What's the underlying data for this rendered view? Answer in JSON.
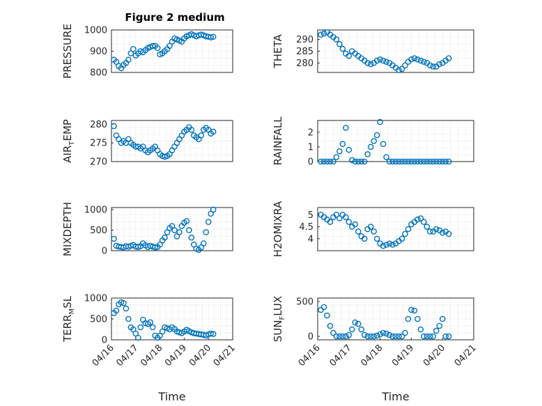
{
  "chart_data": {
    "type": "scatter",
    "title": "Figure 2 medium",
    "xlabel": "Time",
    "x_tick_labels": [
      "04/16",
      "04/17",
      "04/18",
      "04/19",
      "04/20",
      "04/21"
    ],
    "x_range_days": [
      0,
      5
    ],
    "grid": "minor-dotted",
    "marker": "open-circle",
    "colors": {
      "marker": "#0072bd",
      "axes": "#262626",
      "grid": "#d0d0d0"
    },
    "panels": [
      {
        "ylabel": "PRESSURE",
        "ylim": [
          800,
          1000
        ],
        "yticks": [
          "800",
          "900",
          "1000"
        ],
        "ytick_values": [
          800,
          900,
          1000
        ],
        "x_days": [
          0.1,
          0.2,
          0.3,
          0.4,
          0.5,
          0.6,
          0.7,
          0.8,
          0.9,
          1.0,
          1.1,
          1.2,
          1.3,
          1.4,
          1.5,
          1.6,
          1.7,
          1.8,
          1.9,
          2.0,
          2.1,
          2.2,
          2.3,
          2.4,
          2.5,
          2.6,
          2.7,
          2.8,
          2.9,
          3.0,
          3.1,
          3.2,
          3.3,
          3.4,
          3.5,
          3.6,
          3.7,
          3.8,
          3.9,
          4.0,
          4.1,
          4.2
        ],
        "values": [
          860,
          850,
          830,
          820,
          835,
          845,
          860,
          890,
          910,
          880,
          890,
          900,
          895,
          905,
          915,
          920,
          925,
          925,
          915,
          885,
          890,
          900,
          910,
          925,
          945,
          960,
          955,
          950,
          945,
          960,
          970,
          975,
          980,
          975,
          970,
          975,
          978,
          975,
          970,
          968,
          965,
          968
        ]
      },
      {
        "ylabel": "THETA",
        "ylim": [
          276,
          294
        ],
        "yticks": [
          "280",
          "285",
          "290"
        ],
        "ytick_values": [
          280,
          285,
          290
        ],
        "x_days": [
          0.1,
          0.2,
          0.3,
          0.4,
          0.5,
          0.6,
          0.7,
          0.8,
          0.9,
          1.0,
          1.1,
          1.2,
          1.3,
          1.4,
          1.5,
          1.6,
          1.7,
          1.8,
          1.9,
          2.0,
          2.1,
          2.2,
          2.3,
          2.4,
          2.5,
          2.6,
          2.7,
          2.8,
          2.9,
          3.0,
          3.1,
          3.2,
          3.3,
          3.4,
          3.5,
          3.6,
          3.7,
          3.8,
          3.9,
          4.0,
          4.1,
          4.2
        ],
        "values": [
          292,
          292.5,
          293,
          292,
          291,
          290,
          288,
          286,
          284,
          283,
          285,
          284,
          283,
          282,
          281,
          280,
          279.5,
          280,
          281,
          281.5,
          281,
          280.5,
          280,
          279,
          278,
          277,
          277.5,
          279,
          280.5,
          281.5,
          282,
          281.5,
          281,
          280.5,
          280,
          279,
          278.5,
          278.5,
          279.5,
          280,
          281,
          282
        ]
      },
      {
        "ylabel_parts": [
          "AIR",
          "T",
          "EMP"
        ],
        "ylim": [
          270,
          281
        ],
        "yticks": [
          "270",
          "275",
          "280"
        ],
        "ytick_values": [
          270,
          275,
          280
        ],
        "x_days": [
          0.1,
          0.2,
          0.3,
          0.4,
          0.5,
          0.6,
          0.7,
          0.8,
          0.9,
          1.0,
          1.1,
          1.2,
          1.3,
          1.4,
          1.5,
          1.6,
          1.7,
          1.8,
          1.9,
          2.0,
          2.1,
          2.2,
          2.3,
          2.4,
          2.5,
          2.6,
          2.7,
          2.8,
          2.9,
          3.0,
          3.1,
          3.2,
          3.3,
          3.4,
          3.5,
          3.6,
          3.7,
          3.8,
          3.9,
          4.0,
          4.1,
          4.2
        ],
        "values": [
          279.5,
          277,
          276,
          275,
          275.5,
          275,
          276,
          275,
          274.5,
          274,
          274,
          273.5,
          274,
          273,
          272.5,
          273,
          273.5,
          274,
          273,
          272,
          271.5,
          271.3,
          271.5,
          272,
          273,
          274,
          275,
          276,
          277,
          278,
          278.5,
          279.2,
          278.5,
          277,
          276.5,
          276,
          277,
          278.5,
          279,
          278.5,
          277.5,
          278
        ]
      },
      {
        "ylabel": "RAINFALL",
        "ylim": [
          0,
          2.8
        ],
        "yticks": [
          "0",
          "1",
          "2"
        ],
        "ytick_values": [
          0,
          1,
          2
        ],
        "x_days": [
          0.1,
          0.2,
          0.3,
          0.4,
          0.5,
          0.6,
          0.7,
          0.8,
          0.9,
          1.0,
          1.1,
          1.2,
          1.3,
          1.4,
          1.5,
          1.6,
          1.7,
          1.8,
          1.9,
          2.0,
          2.1,
          2.2,
          2.3,
          2.4,
          2.5,
          2.6,
          2.7,
          2.8,
          2.9,
          3.0,
          3.1,
          3.2,
          3.3,
          3.4,
          3.5,
          3.6,
          3.7,
          3.8,
          3.9,
          4.0,
          4.1,
          4.2
        ],
        "values": [
          0,
          0,
          0,
          0,
          0,
          0.3,
          0.7,
          1.2,
          2.3,
          0.8,
          0.1,
          0,
          0,
          0,
          0,
          0.5,
          1.0,
          1.4,
          1.8,
          2.7,
          1.2,
          0.3,
          0,
          0,
          0,
          0,
          0,
          0,
          0,
          0,
          0,
          0,
          0,
          0,
          0,
          0,
          0,
          0,
          0,
          0,
          0,
          0
        ]
      },
      {
        "ylabel": "MIXDEPTH",
        "ylim": [
          0,
          1050
        ],
        "yticks": [
          "0",
          "500",
          "1000"
        ],
        "ytick_values": [
          0,
          500,
          1000
        ],
        "x_days": [
          0.1,
          0.2,
          0.3,
          0.4,
          0.5,
          0.6,
          0.7,
          0.8,
          0.9,
          1.0,
          1.1,
          1.2,
          1.3,
          1.4,
          1.5,
          1.6,
          1.7,
          1.8,
          1.9,
          2.0,
          2.1,
          2.2,
          2.3,
          2.4,
          2.5,
          2.6,
          2.7,
          2.8,
          2.9,
          3.0,
          3.1,
          3.2,
          3.3,
          3.4,
          3.5,
          3.6,
          3.7,
          3.8,
          3.9,
          4.0,
          4.1,
          4.2
        ],
        "values": [
          290,
          120,
          100,
          90,
          80,
          110,
          95,
          120,
          140,
          100,
          90,
          110,
          180,
          130,
          90,
          120,
          100,
          80,
          90,
          150,
          250,
          320,
          450,
          550,
          600,
          500,
          350,
          450,
          600,
          680,
          720,
          500,
          320,
          150,
          50,
          20,
          80,
          180,
          450,
          700,
          900,
          1000
        ]
      },
      {
        "ylabel": "H2OMIXRA",
        "ylim": [
          3.5,
          5.3
        ],
        "yticks": [
          "4",
          "4.5",
          "5"
        ],
        "ytick_values": [
          4,
          4.5,
          5
        ],
        "x_days": [
          0.1,
          0.2,
          0.3,
          0.4,
          0.5,
          0.6,
          0.7,
          0.8,
          0.9,
          1.0,
          1.1,
          1.2,
          1.3,
          1.4,
          1.5,
          1.6,
          1.7,
          1.8,
          1.9,
          2.0,
          2.1,
          2.2,
          2.3,
          2.4,
          2.5,
          2.6,
          2.7,
          2.8,
          2.9,
          3.0,
          3.1,
          3.2,
          3.3,
          3.4,
          3.5,
          3.6,
          3.7,
          3.8,
          3.9,
          4.0,
          4.1,
          4.2
        ],
        "values": [
          5.0,
          4.9,
          4.8,
          4.7,
          4.9,
          5.0,
          4.85,
          5.0,
          4.9,
          4.7,
          4.5,
          4.6,
          4.3,
          4.1,
          4.0,
          4.4,
          4.5,
          4.3,
          4.0,
          3.8,
          3.7,
          3.75,
          3.8,
          3.75,
          3.8,
          3.9,
          4.0,
          4.2,
          4.4,
          4.6,
          4.7,
          4.8,
          4.85,
          4.7,
          4.5,
          4.3,
          4.3,
          4.4,
          4.35,
          4.25,
          4.3,
          4.2
        ]
      },
      {
        "ylabel_parts": [
          "TERR",
          "M",
          "SL"
        ],
        "ylim": [
          0,
          1000
        ],
        "yticks": [
          "0",
          "500",
          "1000"
        ],
        "ytick_values": [
          0,
          500,
          1000
        ],
        "x_days": [
          0.1,
          0.2,
          0.3,
          0.4,
          0.5,
          0.6,
          0.7,
          0.8,
          0.9,
          1.0,
          1.1,
          1.2,
          1.3,
          1.4,
          1.5,
          1.6,
          1.7,
          1.8,
          1.9,
          2.0,
          2.1,
          2.2,
          2.3,
          2.4,
          2.5,
          2.6,
          2.7,
          2.8,
          2.9,
          3.0,
          3.1,
          3.2,
          3.3,
          3.4,
          3.5,
          3.6,
          3.7,
          3.8,
          3.9,
          4.0,
          4.1,
          4.2
        ],
        "values": [
          640,
          700,
          850,
          900,
          880,
          750,
          500,
          300,
          250,
          150,
          50,
          300,
          480,
          400,
          380,
          420,
          300,
          100,
          50,
          100,
          200,
          300,
          280,
          250,
          300,
          260,
          200,
          180,
          160,
          200,
          240,
          210,
          180,
          160,
          150,
          140,
          130,
          120,
          100,
          130,
          150,
          140
        ]
      },
      {
        "ylabel_parts": [
          "SUN",
          "F",
          "LUX"
        ],
        "ylim": [
          -50,
          550
        ],
        "yticks": [
          "0",
          "500"
        ],
        "ytick_values": [
          0,
          500
        ],
        "x_days": [
          0.1,
          0.2,
          0.3,
          0.4,
          0.5,
          0.6,
          0.7,
          0.8,
          0.9,
          1.0,
          1.1,
          1.2,
          1.3,
          1.4,
          1.5,
          1.6,
          1.7,
          1.8,
          1.9,
          2.0,
          2.1,
          2.2,
          2.3,
          2.4,
          2.5,
          2.6,
          2.7,
          2.8,
          2.9,
          3.0,
          3.1,
          3.2,
          3.3,
          3.4,
          3.5,
          3.6,
          3.7,
          3.8,
          3.9,
          4.0,
          4.1,
          4.2
        ],
        "values": [
          380,
          420,
          300,
          150,
          50,
          0,
          0,
          0,
          0,
          20,
          100,
          200,
          180,
          100,
          20,
          0,
          0,
          0,
          10,
          30,
          50,
          40,
          20,
          0,
          0,
          0,
          0,
          50,
          250,
          380,
          370,
          250,
          100,
          0,
          0,
          0,
          0,
          80,
          150,
          250,
          0,
          0
        ]
      }
    ]
  }
}
